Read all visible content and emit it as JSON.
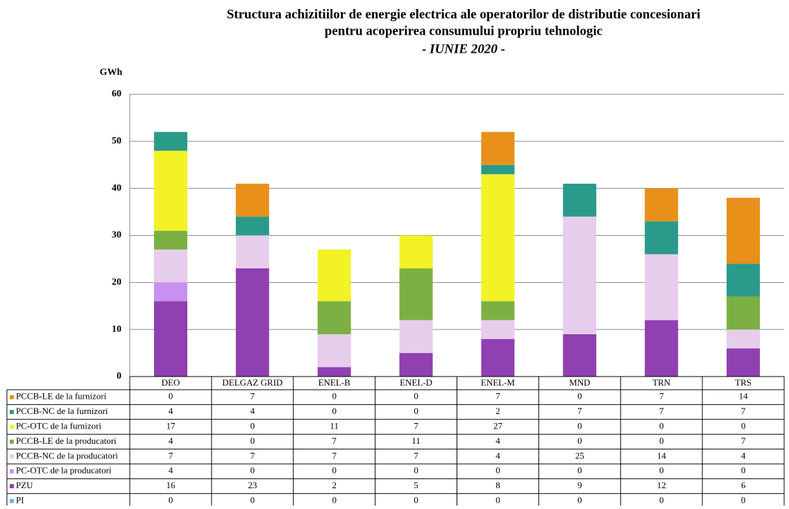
{
  "chart_data": {
    "type": "stacked_bar",
    "title": [
      "Structura achizitiilor de energie electrica ale operatorilor de distributie concesionari",
      "pentru acoperirea consumului propriu tehnologic"
    ],
    "subtitle": "- IUNIE 2020 -",
    "y_label": "GWh",
    "categories": [
      "DEO",
      "DELGAZ GRID",
      "ENEL-B",
      "ENEL-D",
      "ENEL-M",
      "MND",
      "TRN",
      "TRS"
    ],
    "series": [
      {
        "name": "PCCB-LE de la furnizori",
        "color": "#e8901a",
        "values": [
          0,
          7,
          0,
          0,
          7,
          0,
          7,
          14
        ]
      },
      {
        "name": "PCCB-NC de la furnizori",
        "color": "#2a9a8a",
        "values": [
          4,
          4,
          0,
          0,
          2,
          7,
          7,
          7
        ]
      },
      {
        "name": "PC-OTC de la furnizori",
        "color": "#f2f226",
        "values": [
          17,
          0,
          11,
          7,
          27,
          0,
          0,
          0
        ]
      },
      {
        "name": "PCCB-LE de la producatori",
        "color": "#7cb044",
        "values": [
          4,
          0,
          7,
          11,
          4,
          0,
          0,
          7
        ]
      },
      {
        "name": "PCCB-NC de la producatori",
        "color": "#e6cdec",
        "values": [
          7,
          7,
          7,
          7,
          4,
          25,
          14,
          4
        ]
      },
      {
        "name": "PC-OTC de la producatori",
        "color": "#c890f0",
        "values": [
          4,
          0,
          0,
          0,
          0,
          0,
          0,
          0
        ]
      },
      {
        "name": "PZU",
        "color": "#9040b0",
        "values": [
          16,
          23,
          2,
          5,
          8,
          9,
          12,
          6
        ]
      },
      {
        "name": "PI",
        "color": "#60c0d0",
        "values": [
          0,
          0,
          0,
          0,
          0,
          0,
          0,
          0
        ]
      }
    ],
    "ylim": [
      0,
      60
    ],
    "yticks": [
      0,
      10,
      20,
      30,
      40,
      50,
      60
    ],
    "grid": true
  }
}
